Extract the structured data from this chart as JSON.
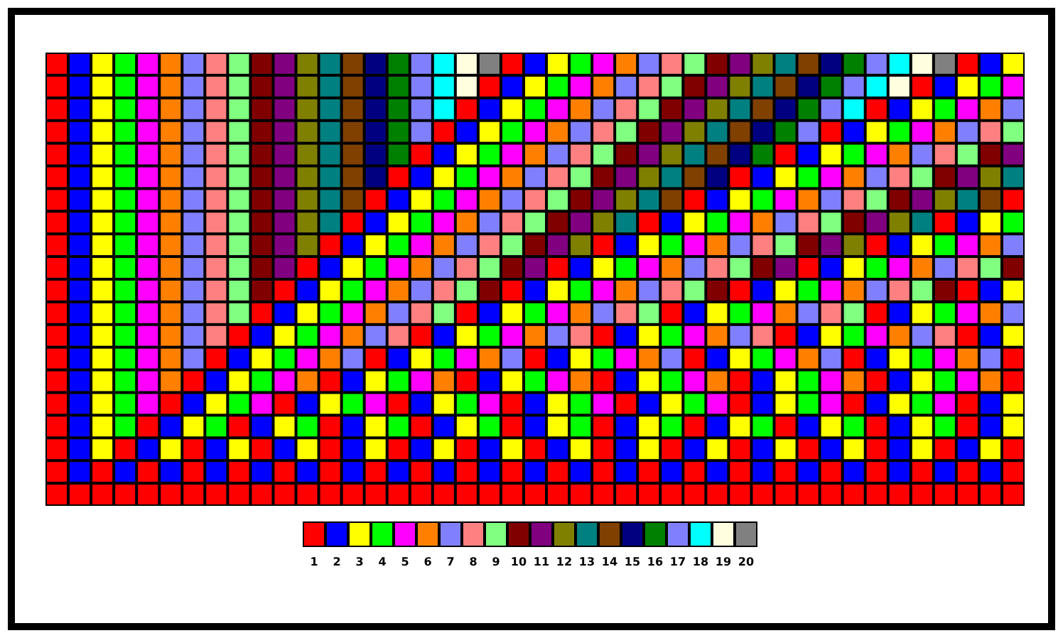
{
  "chart_data": {
    "type": "heatmap",
    "categories": [
      null,
      null,
      null,
      null,
      null,
      null,
      null,
      null,
      null,
      null,
      null,
      null,
      null,
      null,
      null,
      null,
      null,
      null,
      null,
      null,
      null,
      null,
      null,
      null,
      null,
      null,
      null,
      null,
      null,
      null,
      null,
      null,
      null,
      null,
      null,
      null,
      null,
      null,
      null,
      null,
      null,
      null,
      null
    ],
    "y_categories": [
      null,
      null,
      null,
      null,
      null,
      null,
      null,
      null,
      null,
      null,
      null,
      null,
      null,
      null,
      null,
      null,
      null,
      null,
      null,
      null
    ],
    "cells": [
      [
        1,
        2,
        3,
        4,
        5,
        6,
        7,
        8,
        9,
        10,
        11,
        12,
        13,
        14,
        15,
        16,
        17,
        18,
        19,
        20,
        1,
        2,
        3,
        4,
        5,
        6,
        7,
        8,
        9,
        10,
        11,
        12,
        13,
        14,
        15,
        16,
        17,
        18,
        19,
        20,
        1,
        2,
        3
      ],
      [
        1,
        2,
        3,
        4,
        5,
        6,
        7,
        8,
        9,
        10,
        11,
        12,
        13,
        14,
        15,
        16,
        17,
        18,
        19,
        1,
        2,
        3,
        4,
        5,
        6,
        7,
        8,
        9,
        10,
        11,
        12,
        13,
        14,
        15,
        16,
        17,
        18,
        19,
        1,
        2,
        3,
        4,
        5
      ],
      [
        1,
        2,
        3,
        4,
        5,
        6,
        7,
        8,
        9,
        10,
        11,
        12,
        13,
        14,
        15,
        16,
        17,
        18,
        1,
        2,
        3,
        4,
        5,
        6,
        7,
        8,
        9,
        10,
        11,
        12,
        13,
        14,
        15,
        16,
        17,
        18,
        1,
        2,
        3,
        4,
        5,
        6,
        7
      ],
      [
        1,
        2,
        3,
        4,
        5,
        6,
        7,
        8,
        9,
        10,
        11,
        12,
        13,
        14,
        15,
        16,
        17,
        1,
        2,
        3,
        4,
        5,
        6,
        7,
        8,
        9,
        10,
        11,
        12,
        13,
        14,
        15,
        16,
        17,
        1,
        2,
        3,
        4,
        5,
        6,
        7,
        8,
        9
      ],
      [
        1,
        2,
        3,
        4,
        5,
        6,
        7,
        8,
        9,
        10,
        11,
        12,
        13,
        14,
        15,
        16,
        1,
        2,
        3,
        4,
        5,
        6,
        7,
        8,
        9,
        10,
        11,
        12,
        13,
        14,
        15,
        16,
        1,
        2,
        3,
        4,
        5,
        6,
        7,
        8,
        9,
        10,
        11
      ],
      [
        1,
        2,
        3,
        4,
        5,
        6,
        7,
        8,
        9,
        10,
        11,
        12,
        13,
        14,
        15,
        1,
        2,
        3,
        4,
        5,
        6,
        7,
        8,
        9,
        10,
        11,
        12,
        13,
        14,
        15,
        1,
        2,
        3,
        4,
        5,
        6,
        7,
        8,
        9,
        10,
        11,
        12,
        13
      ],
      [
        1,
        2,
        3,
        4,
        5,
        6,
        7,
        8,
        9,
        10,
        11,
        12,
        13,
        14,
        1,
        2,
        3,
        4,
        5,
        6,
        7,
        8,
        9,
        10,
        11,
        12,
        13,
        14,
        1,
        2,
        3,
        4,
        5,
        6,
        7,
        8,
        9,
        10,
        11,
        12,
        13,
        14,
        1
      ],
      [
        1,
        2,
        3,
        4,
        5,
        6,
        7,
        8,
        9,
        10,
        11,
        12,
        13,
        1,
        2,
        3,
        4,
        5,
        6,
        7,
        8,
        9,
        10,
        11,
        12,
        13,
        1,
        2,
        3,
        4,
        5,
        6,
        7,
        8,
        9,
        10,
        11,
        12,
        13,
        1,
        2,
        3,
        4
      ],
      [
        1,
        2,
        3,
        4,
        5,
        6,
        7,
        8,
        9,
        10,
        11,
        12,
        1,
        2,
        3,
        4,
        5,
        6,
        7,
        8,
        9,
        10,
        11,
        12,
        1,
        2,
        3,
        4,
        5,
        6,
        7,
        8,
        9,
        10,
        11,
        12,
        1,
        2,
        3,
        4,
        5,
        6,
        7
      ],
      [
        1,
        2,
        3,
        4,
        5,
        6,
        7,
        8,
        9,
        10,
        11,
        1,
        2,
        3,
        4,
        5,
        6,
        7,
        8,
        9,
        10,
        11,
        1,
        2,
        3,
        4,
        5,
        6,
        7,
        8,
        9,
        10,
        11,
        1,
        2,
        3,
        4,
        5,
        6,
        7,
        8,
        9,
        10
      ],
      [
        1,
        2,
        3,
        4,
        5,
        6,
        7,
        8,
        9,
        10,
        1,
        2,
        3,
        4,
        5,
        6,
        7,
        8,
        9,
        10,
        1,
        2,
        3,
        4,
        5,
        6,
        7,
        8,
        9,
        10,
        1,
        2,
        3,
        4,
        5,
        6,
        7,
        8,
        9,
        10,
        1,
        2,
        3
      ],
      [
        1,
        2,
        3,
        4,
        5,
        6,
        7,
        8,
        9,
        1,
        2,
        3,
        4,
        5,
        6,
        7,
        8,
        9,
        1,
        2,
        3,
        4,
        5,
        6,
        7,
        8,
        9,
        1,
        2,
        3,
        4,
        5,
        6,
        7,
        8,
        9,
        1,
        2,
        3,
        4,
        5,
        6,
        7
      ],
      [
        1,
        2,
        3,
        4,
        5,
        6,
        7,
        8,
        1,
        2,
        3,
        4,
        5,
        6,
        7,
        8,
        1,
        2,
        3,
        4,
        5,
        6,
        7,
        8,
        1,
        2,
        3,
        4,
        5,
        6,
        7,
        8,
        1,
        2,
        3,
        4,
        5,
        6,
        7,
        8,
        1,
        2,
        3
      ],
      [
        1,
        2,
        3,
        4,
        5,
        6,
        7,
        1,
        2,
        3,
        4,
        5,
        6,
        7,
        1,
        2,
        3,
        4,
        5,
        6,
        7,
        1,
        2,
        3,
        4,
        5,
        6,
        7,
        1,
        2,
        3,
        4,
        5,
        6,
        7,
        1,
        2,
        3,
        4,
        5,
        6,
        7,
        1
      ],
      [
        1,
        2,
        3,
        4,
        5,
        6,
        1,
        2,
        3,
        4,
        5,
        6,
        1,
        2,
        3,
        4,
        5,
        6,
        1,
        2,
        3,
        4,
        5,
        6,
        1,
        2,
        3,
        4,
        5,
        6,
        1,
        2,
        3,
        4,
        5,
        6,
        1,
        2,
        3,
        4,
        5,
        6,
        1
      ],
      [
        1,
        2,
        3,
        4,
        5,
        1,
        2,
        3,
        4,
        5,
        1,
        2,
        3,
        4,
        5,
        1,
        2,
        3,
        4,
        5,
        1,
        2,
        3,
        4,
        5,
        1,
        2,
        3,
        4,
        5,
        1,
        2,
        3,
        4,
        5,
        1,
        2,
        3,
        4,
        5,
        1,
        2,
        3
      ],
      [
        1,
        2,
        3,
        4,
        1,
        2,
        3,
        4,
        1,
        2,
        3,
        4,
        1,
        2,
        3,
        4,
        1,
        2,
        3,
        4,
        1,
        2,
        3,
        4,
        1,
        2,
        3,
        4,
        1,
        2,
        3,
        4,
        1,
        2,
        3,
        4,
        1,
        2,
        3,
        4,
        1,
        2,
        3
      ],
      [
        1,
        2,
        3,
        1,
        2,
        3,
        1,
        2,
        3,
        1,
        2,
        3,
        1,
        2,
        3,
        1,
        2,
        3,
        1,
        2,
        3,
        1,
        2,
        3,
        1,
        2,
        3,
        1,
        2,
        3,
        1,
        2,
        3,
        1,
        2,
        3,
        1,
        2,
        3,
        1,
        2,
        3,
        1
      ],
      [
        1,
        2,
        1,
        2,
        1,
        2,
        1,
        2,
        1,
        2,
        1,
        2,
        1,
        2,
        1,
        2,
        1,
        2,
        1,
        2,
        1,
        2,
        1,
        2,
        1,
        2,
        1,
        2,
        1,
        2,
        1,
        2,
        1,
        2,
        1,
        2,
        1,
        2,
        1,
        2,
        1,
        2,
        1
      ],
      [
        1,
        1,
        1,
        1,
        1,
        1,
        1,
        1,
        1,
        1,
        1,
        1,
        1,
        1,
        1,
        1,
        1,
        1,
        1,
        1,
        1,
        1,
        1,
        1,
        1,
        1,
        1,
        1,
        1,
        1,
        1,
        1,
        1,
        1,
        1,
        1,
        1,
        1,
        1,
        1,
        1,
        1,
        1
      ]
    ],
    "colors": [
      "#ff0000",
      "#0000ff",
      "#ffff00",
      "#00ff00",
      "#ff00ff",
      "#ff8000",
      "#8080ff",
      "#ff8080",
      "#80ff80",
      "#800000",
      "#800080",
      "#808000",
      "#008080",
      "#804000",
      "#000080",
      "#008000",
      "#8080ff",
      "#00ffff",
      "#ffffe0",
      "#808080"
    ],
    "clim": [
      0.5,
      20.5
    ],
    "cticks": [
      1,
      2,
      3,
      4,
      5,
      6,
      7,
      8,
      9,
      10,
      11,
      12,
      13,
      14,
      15,
      16,
      17,
      18,
      19,
      20
    ]
  }
}
